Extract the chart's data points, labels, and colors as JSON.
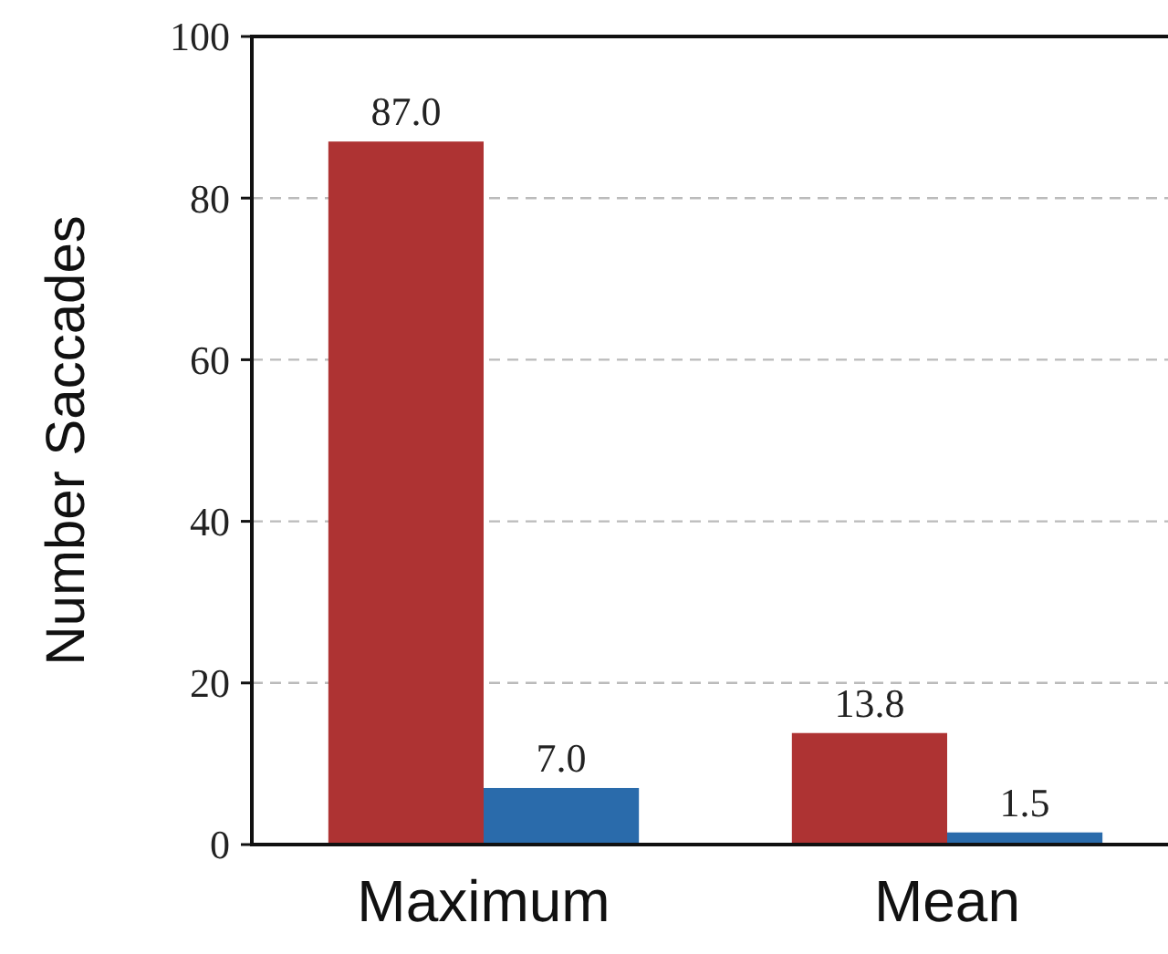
{
  "chart_data": {
    "type": "bar",
    "ylabel": "Number Saccades",
    "categories": [
      "Maximum",
      "Mean"
    ],
    "series": [
      {
        "color": "#ae3333",
        "values": [
          87.0,
          13.8
        ],
        "value_labels": [
          "87.0",
          "13.8"
        ]
      },
      {
        "color": "#2a6bab",
        "values": [
          7.0,
          1.5
        ],
        "value_labels": [
          "7.0",
          "1.5"
        ]
      }
    ],
    "ylim": [
      0,
      100
    ],
    "yticks": [
      0,
      20,
      40,
      60,
      80,
      100
    ],
    "grid": "y"
  }
}
